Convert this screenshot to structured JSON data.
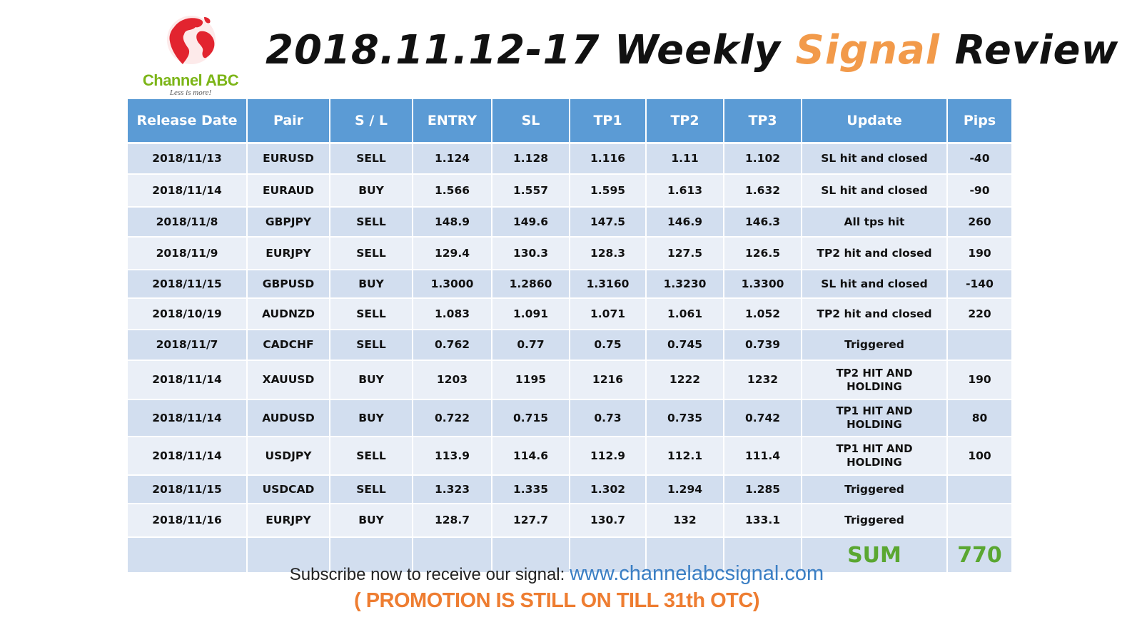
{
  "logo": {
    "name": "Channel ABC",
    "tagline": "Less is more!",
    "icon": "globe-icon",
    "colors": {
      "globe": "#e2242f",
      "name": "#7cb518"
    }
  },
  "title": {
    "prefix": "2018.11.12-17 Weekly ",
    "accent": "Signal",
    "suffix": " Review",
    "accent_color": "#f29a4a"
  },
  "table": {
    "headers": [
      "Release Date",
      "Pair",
      "S / L",
      "ENTRY",
      "SL",
      "TP1",
      "TP2",
      "TP3",
      "Update",
      "Pips"
    ],
    "rows": [
      [
        "2018/11/13",
        "EURUSD",
        "SELL",
        "1.124",
        "1.128",
        "1.116",
        "1.11",
        "1.102",
        "SL hit and closed",
        "-40"
      ],
      [
        "2018/11/14",
        "EURAUD",
        "BUY",
        "1.566",
        "1.557",
        "1.595",
        "1.613",
        "1.632",
        "SL hit and closed",
        "-90"
      ],
      [
        "2018/11/8",
        "GBPJPY",
        "SELL",
        "148.9",
        "149.6",
        "147.5",
        "146.9",
        "146.3",
        "All tps hit",
        "260"
      ],
      [
        "2018/11/9",
        "EURJPY",
        "SELL",
        "129.4",
        "130.3",
        "128.3",
        "127.5",
        "126.5",
        "TP2 hit and closed",
        "190"
      ],
      [
        "2018/11/15",
        "GBPUSD",
        "BUY",
        "1.3000",
        "1.2860",
        "1.3160",
        "1.3230",
        "1.3300",
        "SL hit and closed",
        "-140"
      ],
      [
        "2018/10/19",
        "AUDNZD",
        "SELL",
        "1.083",
        "1.091",
        "1.071",
        "1.061",
        "1.052",
        "TP2 hit and closed",
        "220"
      ],
      [
        "2018/11/7",
        "CADCHF",
        "SELL",
        "0.762",
        "0.77",
        "0.75",
        "0.745",
        "0.739",
        "Triggered",
        ""
      ],
      [
        "2018/11/14",
        "XAUUSD",
        "BUY",
        "1203",
        "1195",
        "1216",
        "1222",
        "1232",
        "TP2 HIT AND HOLDING",
        "190"
      ],
      [
        "2018/11/14",
        "AUDUSD",
        "BUY",
        "0.722",
        "0.715",
        "0.73",
        "0.735",
        "0.742",
        "TP1 HIT AND HOLDING",
        "80"
      ],
      [
        "2018/11/14",
        "USDJPY",
        "SELL",
        "113.9",
        "114.6",
        "112.9",
        "112.1",
        "111.4",
        "TP1 HIT AND HOLDING",
        "100"
      ],
      [
        "2018/11/15",
        "USDCAD",
        "SELL",
        "1.323",
        "1.335",
        "1.302",
        "1.294",
        "1.285",
        "Triggered",
        ""
      ],
      [
        "2018/11/16",
        "EURJPY",
        "BUY",
        "128.7",
        "127.7",
        "130.7",
        "132",
        "133.1",
        "Triggered",
        ""
      ]
    ],
    "sum_label": "SUM",
    "sum_value": "770",
    "colors": {
      "header": "#5b9bd5",
      "row_dark": "#d2deef",
      "row_light": "#eaeff7",
      "sum_text": "#5aa731"
    }
  },
  "footer": {
    "subscribe_text": "Subscribe now to receive our signal: ",
    "link": "www.channelabcsignal.com",
    "promo": "( PROMOTION IS STILL ON TILL 31th OTC)",
    "link_color": "#3b7fc4",
    "promo_color": "#ee7d31"
  }
}
